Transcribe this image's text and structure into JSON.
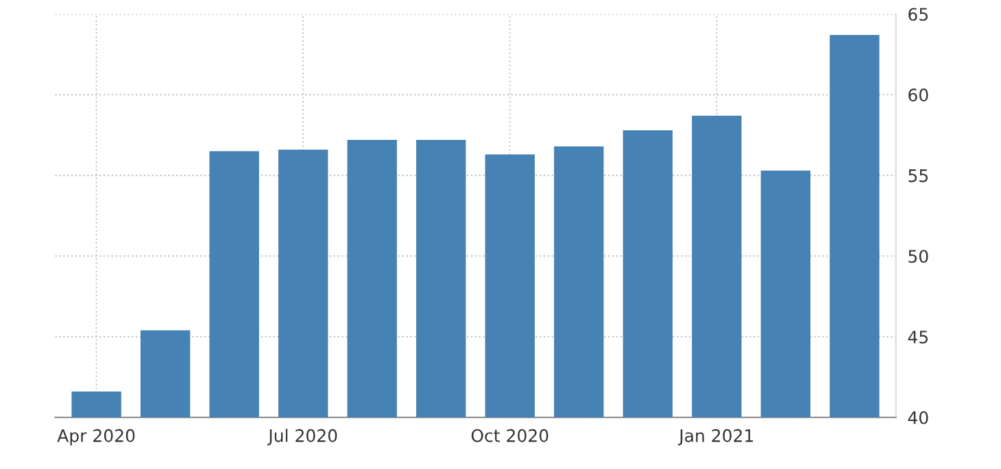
{
  "chart_data": {
    "type": "bar",
    "categories": [
      "Apr 2020",
      null,
      null,
      "Jul 2020",
      null,
      null,
      "Oct 2020",
      null,
      null,
      "Jan 2021",
      null,
      null
    ],
    "values": [
      41.6,
      45.4,
      56.5,
      56.6,
      57.2,
      57.2,
      56.3,
      56.8,
      57.8,
      58.7,
      55.3,
      63.7
    ],
    "color": "#4682b4",
    "ylim": [
      40,
      65
    ],
    "yticks": [
      40,
      45,
      50,
      55,
      60,
      65
    ],
    "grid": true,
    "legend": false
  }
}
